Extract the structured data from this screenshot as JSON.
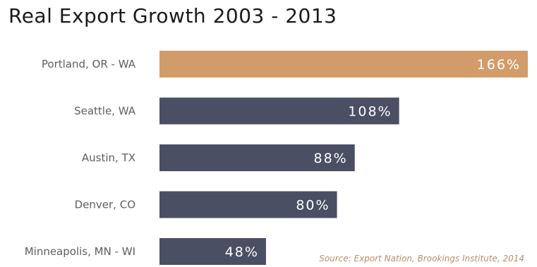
{
  "chart_data": {
    "type": "bar",
    "orientation": "horizontal",
    "title": "Real Export Growth 2003 - 2013",
    "categories": [
      "Portland, OR - WA",
      "Seattle, WA",
      "Austin, TX",
      "Denver, CO",
      "Minneapolis, MN - WI"
    ],
    "values": [
      166,
      108,
      88,
      80,
      48
    ],
    "value_labels": [
      "166%",
      "108%",
      "88%",
      "80%",
      "48%"
    ],
    "unit": "%",
    "xlim": [
      0,
      166
    ],
    "grid": false,
    "highlight_index": 0,
    "colors": {
      "highlight": "#d29c6a",
      "default": "#4a4f64",
      "category_text": "#5e5e5e",
      "source_text": "#b79068"
    },
    "source": "Source: Export Nation, Brookings Institute, 2014"
  }
}
